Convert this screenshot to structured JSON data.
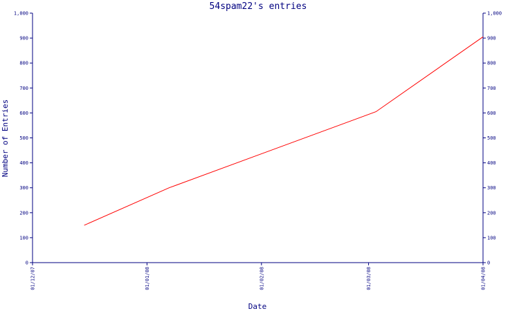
{
  "chart_data": {
    "type": "line",
    "title": "54spam22's entries",
    "xlabel": "Date",
    "ylabel": "Number of Entries",
    "x_tick_labels": [
      "01/12/07",
      "01/01/08",
      "01/02/08",
      "01/03/08",
      "01/04/08"
    ],
    "y_tick_labels": [
      "0",
      "100",
      "200",
      "300",
      "400",
      "500",
      "600",
      "700",
      "800",
      "900",
      "1,000"
    ],
    "ylim": [
      0,
      1000
    ],
    "xlim": [
      "2007-12-01",
      "2008-04-01"
    ],
    "series": [
      {
        "x": [
          "2007-12-15",
          "2008-01-07",
          "2008-03-03",
          "2008-04-01"
        ],
        "values": [
          150,
          300,
          605,
          905
        ]
      }
    ],
    "grid": false,
    "right_axis_mirror": true
  },
  "colors": {
    "axis": "#000080",
    "line": "#ff0000",
    "background": "#ffffff"
  }
}
